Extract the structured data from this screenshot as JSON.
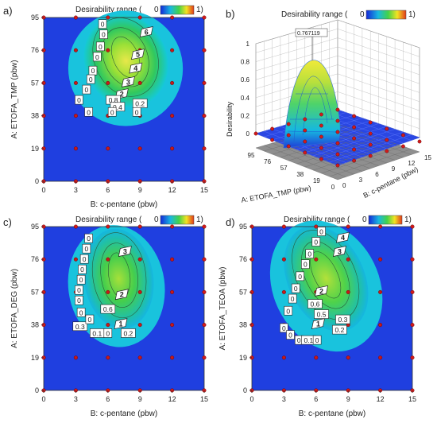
{
  "figure": {
    "colorbar": {
      "title": "Desirability range (",
      "min_label": "0",
      "max_label": "1)",
      "colors": [
        "#1428d8",
        "#19b8e0",
        "#43d24a",
        "#f3e322",
        "#e23a1a"
      ]
    },
    "panels": [
      {
        "label": "a)"
      },
      {
        "label": "b)"
      },
      {
        "label": "c)"
      },
      {
        "label": "d)"
      }
    ]
  },
  "chart_data": [
    {
      "type": "heatmap",
      "panel": "a)",
      "title": "Desirability range ( 0 1)",
      "xlabel": "B: c-pentane (pbw)",
      "ylabel": "A: ETOFA_TMP (pbw)",
      "x_ticks": [
        "0",
        "3",
        "6",
        "9",
        "12",
        "15"
      ],
      "y_ticks": [
        "0",
        "19",
        "38",
        "57",
        "76",
        "95"
      ],
      "xlim": [
        0,
        15
      ],
      "ylim": [
        0,
        95
      ],
      "design_points": [
        [
          0,
          0
        ],
        [
          3,
          0
        ],
        [
          6,
          0
        ],
        [
          9,
          0
        ],
        [
          12,
          0
        ],
        [
          15,
          0
        ],
        [
          0,
          19
        ],
        [
          3,
          19
        ],
        [
          6,
          19
        ],
        [
          9,
          19
        ],
        [
          12,
          19
        ],
        [
          15,
          19
        ],
        [
          0,
          38
        ],
        [
          3,
          38
        ],
        [
          6,
          38
        ],
        [
          9,
          38
        ],
        [
          12,
          38
        ],
        [
          15,
          38
        ],
        [
          0,
          57
        ],
        [
          3,
          57
        ],
        [
          6,
          57
        ],
        [
          9,
          57
        ],
        [
          12,
          57
        ],
        [
          15,
          57
        ],
        [
          0,
          76
        ],
        [
          3,
          76
        ],
        [
          6,
          76
        ],
        [
          9,
          76
        ],
        [
          12,
          76
        ],
        [
          15,
          76
        ],
        [
          0,
          95
        ],
        [
          3,
          95
        ],
        [
          6,
          95
        ],
        [
          9,
          95
        ],
        [
          12,
          95
        ],
        [
          15,
          95
        ]
      ],
      "contour_labels": [
        {
          "text": "6",
          "x": 9.6,
          "y": 86,
          "style": "flag"
        },
        {
          "text": "5",
          "x": 8.8,
          "y": 73,
          "style": "flag"
        },
        {
          "text": "4",
          "x": 8.6,
          "y": 65,
          "style": "flag"
        },
        {
          "text": "3",
          "x": 7.9,
          "y": 57,
          "style": "flag"
        },
        {
          "text": "2",
          "x": 7.3,
          "y": 50,
          "style": "flag"
        },
        {
          "text": "0",
          "x": 5.5,
          "y": 91,
          "style": "box"
        },
        {
          "text": "0",
          "x": 5.6,
          "y": 85,
          "style": "box"
        },
        {
          "text": "0",
          "x": 5.3,
          "y": 78,
          "style": "box"
        },
        {
          "text": "0",
          "x": 5.0,
          "y": 72,
          "style": "box"
        },
        {
          "text": "0",
          "x": 4.6,
          "y": 64,
          "style": "box"
        },
        {
          "text": "0",
          "x": 4.4,
          "y": 59,
          "style": "box"
        },
        {
          "text": "0",
          "x": 4.0,
          "y": 53,
          "style": "box"
        },
        {
          "text": "0",
          "x": 3.3,
          "y": 47,
          "style": "box"
        },
        {
          "text": "0.8",
          "x": 6.5,
          "y": 47,
          "style": "box"
        },
        {
          "text": "0.4",
          "x": 6.9,
          "y": 43,
          "style": "box"
        },
        {
          "text": "0.2",
          "x": 9.0,
          "y": 45,
          "style": "box"
        },
        {
          "text": "0",
          "x": 4.2,
          "y": 40,
          "style": "box"
        },
        {
          "text": "0",
          "x": 6.4,
          "y": 40,
          "style": "box"
        },
        {
          "text": "0",
          "x": 8.7,
          "y": 40,
          "style": "box"
        }
      ]
    },
    {
      "type": "surface",
      "panel": "b)",
      "title": "Desirability range ( 0 1)",
      "zlabel": "Desirability",
      "xlabel": "B: c-pentane (pbw)",
      "ylabel": "A: ETOFA_TMP (pbw)",
      "z_ticks": [
        "0",
        "0.2",
        "0.4",
        "0.6",
        "0.8",
        "1"
      ],
      "a_ticks": [
        "95",
        "76",
        "57",
        "38",
        "19",
        "0"
      ],
      "b_ticks": [
        "0",
        "3",
        "6",
        "9",
        "12",
        "15"
      ],
      "zlim": [
        0,
        1
      ],
      "peak": {
        "label": "0.767119",
        "value": 0.767119
      }
    },
    {
      "type": "heatmap",
      "panel": "c)",
      "title": "Desirability range ( 0 1)",
      "xlabel": "B: c-pentane (pbw)",
      "ylabel": "A: ETOFA_DEG (pbw)",
      "x_ticks": [
        "0",
        "3",
        "6",
        "9",
        "12",
        "15"
      ],
      "y_ticks": [
        "0",
        "19",
        "38",
        "57",
        "76",
        "95"
      ],
      "xlim": [
        0,
        15
      ],
      "ylim": [
        0,
        95
      ],
      "contour_labels": [
        {
          "text": "3",
          "x": 7.6,
          "y": 80,
          "style": "flag"
        },
        {
          "text": "2",
          "x": 7.3,
          "y": 55,
          "style": "flag"
        },
        {
          "text": "1",
          "x": 7.2,
          "y": 38,
          "style": "flag"
        },
        {
          "text": "0",
          "x": 4.2,
          "y": 88,
          "style": "box"
        },
        {
          "text": "0",
          "x": 4.0,
          "y": 82,
          "style": "box"
        },
        {
          "text": "0",
          "x": 3.8,
          "y": 76,
          "style": "box"
        },
        {
          "text": "0",
          "x": 3.6,
          "y": 70,
          "style": "box"
        },
        {
          "text": "0",
          "x": 3.5,
          "y": 64,
          "style": "box"
        },
        {
          "text": "0",
          "x": 3.3,
          "y": 58,
          "style": "box"
        },
        {
          "text": "0",
          "x": 3.3,
          "y": 52,
          "style": "box"
        },
        {
          "text": "0",
          "x": 3.5,
          "y": 45,
          "style": "box"
        },
        {
          "text": "0.6",
          "x": 6.0,
          "y": 47,
          "style": "box"
        },
        {
          "text": "0.3",
          "x": 3.4,
          "y": 37,
          "style": "box"
        },
        {
          "text": "0.2",
          "x": 7.9,
          "y": 33,
          "style": "box"
        },
        {
          "text": "0.1",
          "x": 5.0,
          "y": 33,
          "style": "box"
        },
        {
          "text": "0",
          "x": 4.3,
          "y": 41,
          "style": "box"
        },
        {
          "text": "0",
          "x": 6.0,
          "y": 33,
          "style": "box"
        }
      ]
    },
    {
      "type": "heatmap",
      "panel": "d)",
      "title": "Desirability range ( 0 1)",
      "xlabel": "B: c-pentane (pbw)",
      "ylabel": "A: ETOFA_TEOA (pbw)",
      "x_ticks": [
        "0",
        "3",
        "6",
        "9",
        "12",
        "15"
      ],
      "y_ticks": [
        "0",
        "19",
        "38",
        "57",
        "76",
        "95"
      ],
      "xlim": [
        0,
        15
      ],
      "ylim": [
        0,
        95
      ],
      "contour_labels": [
        {
          "text": "4",
          "x": 8.5,
          "y": 88,
          "style": "flag"
        },
        {
          "text": "3",
          "x": 8.2,
          "y": 80,
          "style": "flag"
        },
        {
          "text": "2",
          "x": 6.5,
          "y": 57,
          "style": "flag"
        },
        {
          "text": "1",
          "x": 6.2,
          "y": 38,
          "style": "flag"
        },
        {
          "text": "0",
          "x": 6.5,
          "y": 92,
          "style": "box"
        },
        {
          "text": "0",
          "x": 6.0,
          "y": 86,
          "style": "box"
        },
        {
          "text": "0",
          "x": 5.4,
          "y": 79,
          "style": "box"
        },
        {
          "text": "0",
          "x": 5.0,
          "y": 73,
          "style": "box"
        },
        {
          "text": "0",
          "x": 4.5,
          "y": 66,
          "style": "box"
        },
        {
          "text": "0",
          "x": 4.1,
          "y": 59,
          "style": "box"
        },
        {
          "text": "0",
          "x": 3.8,
          "y": 53,
          "style": "box"
        },
        {
          "text": "0",
          "x": 3.4,
          "y": 46,
          "style": "box"
        },
        {
          "text": "0.6",
          "x": 5.9,
          "y": 50,
          "style": "box"
        },
        {
          "text": "0.5",
          "x": 6.5,
          "y": 44,
          "style": "box"
        },
        {
          "text": "0.3",
          "x": 8.5,
          "y": 41,
          "style": "box"
        },
        {
          "text": "0.2",
          "x": 8.2,
          "y": 35,
          "style": "box"
        },
        {
          "text": "0",
          "x": 3.0,
          "y": 36,
          "style": "box"
        },
        {
          "text": "0",
          "x": 3.6,
          "y": 32,
          "style": "box"
        },
        {
          "text": "0",
          "x": 4.4,
          "y": 29,
          "style": "box"
        },
        {
          "text": "0.1",
          "x": 5.3,
          "y": 29,
          "style": "box"
        },
        {
          "text": "0",
          "x": 6.1,
          "y": 29,
          "style": "box"
        }
      ]
    }
  ]
}
